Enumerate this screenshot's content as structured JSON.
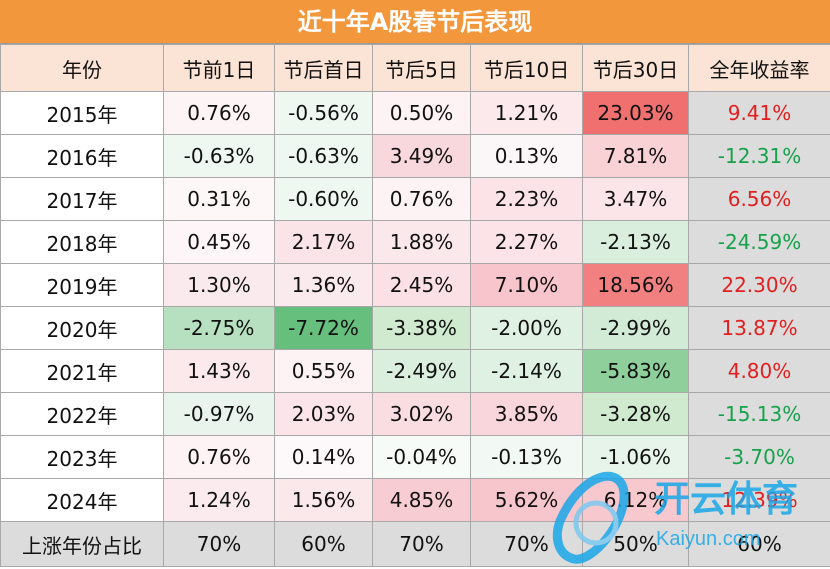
{
  "title": "近十年A股春节后表现",
  "headers": [
    "年份",
    "节前1日",
    "节后首日",
    "节后5日",
    "节后10日",
    "节后30日",
    "全年收益率"
  ],
  "rows": [
    {
      "year": "2015年",
      "values": [
        "0.76%",
        "-0.56%",
        "0.50%",
        "1.21%",
        "23.03%",
        "9.41%"
      ],
      "bg": [
        "#fdf4f6",
        "#eef7f0",
        "#fdf3f5",
        "#fbe9ec",
        "#f07070",
        "#dcdcdc"
      ]
    },
    {
      "year": "2016年",
      "values": [
        "-0.63%",
        "-0.63%",
        "3.49%",
        "0.13%",
        "7.81%",
        "-12.31%"
      ],
      "bg": [
        "#eef7f0",
        "#eef7f0",
        "#f9d8dd",
        "#fbf7f8",
        "#f9d2d6",
        "#dcdcdc"
      ]
    },
    {
      "year": "2017年",
      "values": [
        "0.31%",
        "-0.60%",
        "0.76%",
        "2.23%",
        "3.47%",
        "6.56%"
      ],
      "bg": [
        "#fdf7f8",
        "#eef7f0",
        "#fdf3f5",
        "#fbe3e7",
        "#fbe5e8",
        "#dcdcdc"
      ]
    },
    {
      "year": "2018年",
      "values": [
        "0.45%",
        "2.17%",
        "1.88%",
        "2.27%",
        "-2.13%",
        "-24.59%"
      ],
      "bg": [
        "#fdf5f7",
        "#fbe4e8",
        "#fbe8eb",
        "#fbe3e7",
        "#d9eedd",
        "#dcdcdc"
      ]
    },
    {
      "year": "2019年",
      "values": [
        "1.30%",
        "1.36%",
        "2.45%",
        "7.10%",
        "18.56%",
        "22.30%"
      ],
      "bg": [
        "#fbeaed",
        "#fbeaed",
        "#fbe1e5",
        "#f7c5cb",
        "#f28080",
        "#dcdcdc"
      ]
    },
    {
      "year": "2020年",
      "values": [
        "-2.75%",
        "-7.72%",
        "-3.38%",
        "-2.00%",
        "-2.99%",
        "13.87%"
      ],
      "bg": [
        "#b7e0c0",
        "#66bf7c",
        "#cfeacf",
        "#dff1e3",
        "#d2ebd6",
        "#dcdcdc"
      ]
    },
    {
      "year": "2021年",
      "values": [
        "1.43%",
        "0.55%",
        "-2.49%",
        "-2.14%",
        "-5.83%",
        "4.80%"
      ],
      "bg": [
        "#fbe9ec",
        "#fdf3f5",
        "#dbefdf",
        "#dff1e3",
        "#8fcf9c",
        "#dcdcdc"
      ]
    },
    {
      "year": "2022年",
      "values": [
        "-0.97%",
        "2.03%",
        "3.02%",
        "3.85%",
        "-3.28%",
        "-15.13%"
      ],
      "bg": [
        "#e9f5ec",
        "#fbe5e8",
        "#f9dde1",
        "#f9d6db",
        "#cfeacf",
        "#dcdcdc"
      ]
    },
    {
      "year": "2023年",
      "values": [
        "0.76%",
        "0.14%",
        "-0.04%",
        "-0.13%",
        "-1.06%",
        "-3.70%"
      ],
      "bg": [
        "#fdf3f5",
        "#fdf9fa",
        "#f6fbf7",
        "#f2f9f4",
        "#e7f4ea",
        "#dcdcdc"
      ]
    },
    {
      "year": "2024年",
      "values": [
        "1.24%",
        "1.56%",
        "4.85%",
        "5.62%",
        "6.12%",
        "12.39%"
      ],
      "bg": [
        "#fbebee",
        "#fbe8eb",
        "#f7cdd3",
        "#f6c6cc",
        "#f7c9cf",
        "#dcdcdc"
      ]
    }
  ],
  "summary": {
    "label": "上涨年份占比",
    "values": [
      "70%",
      "60%",
      "70%",
      "70%",
      "50%",
      "60%"
    ]
  },
  "watermark": {
    "brand_cn": "开云体育",
    "brand_en": "Kaiyun.com"
  }
}
